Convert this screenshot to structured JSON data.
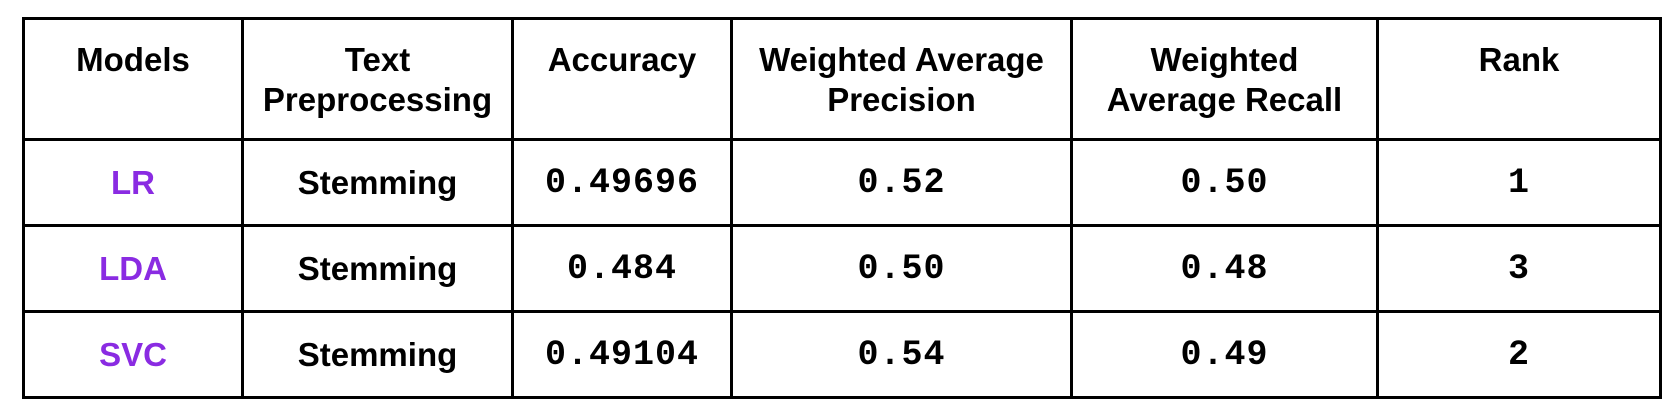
{
  "table": {
    "headers": [
      {
        "lines": [
          "Models"
        ]
      },
      {
        "lines": [
          "Text",
          "Preprocessing"
        ]
      },
      {
        "lines": [
          "Accuracy"
        ]
      },
      {
        "lines": [
          "Weighted Average",
          "Precision"
        ]
      },
      {
        "lines": [
          "Weighted",
          "Average Recall"
        ]
      },
      {
        "lines": [
          "Rank"
        ]
      }
    ],
    "rows": [
      {
        "model": "LR",
        "preprocessing": "Stemming",
        "accuracy": "0.49696",
        "precision": "0.52",
        "recall": "0.50",
        "rank": "1"
      },
      {
        "model": "LDA",
        "preprocessing": "Stemming",
        "accuracy": "0.484",
        "precision": "0.50",
        "recall": "0.48",
        "rank": "3"
      },
      {
        "model": "SVC",
        "preprocessing": "Stemming",
        "accuracy": "0.49104",
        "precision": "0.54",
        "recall": "0.49",
        "rank": "2"
      }
    ]
  },
  "colors": {
    "model_text": "#8a2be2",
    "border": "#000000",
    "text": "#000000"
  }
}
